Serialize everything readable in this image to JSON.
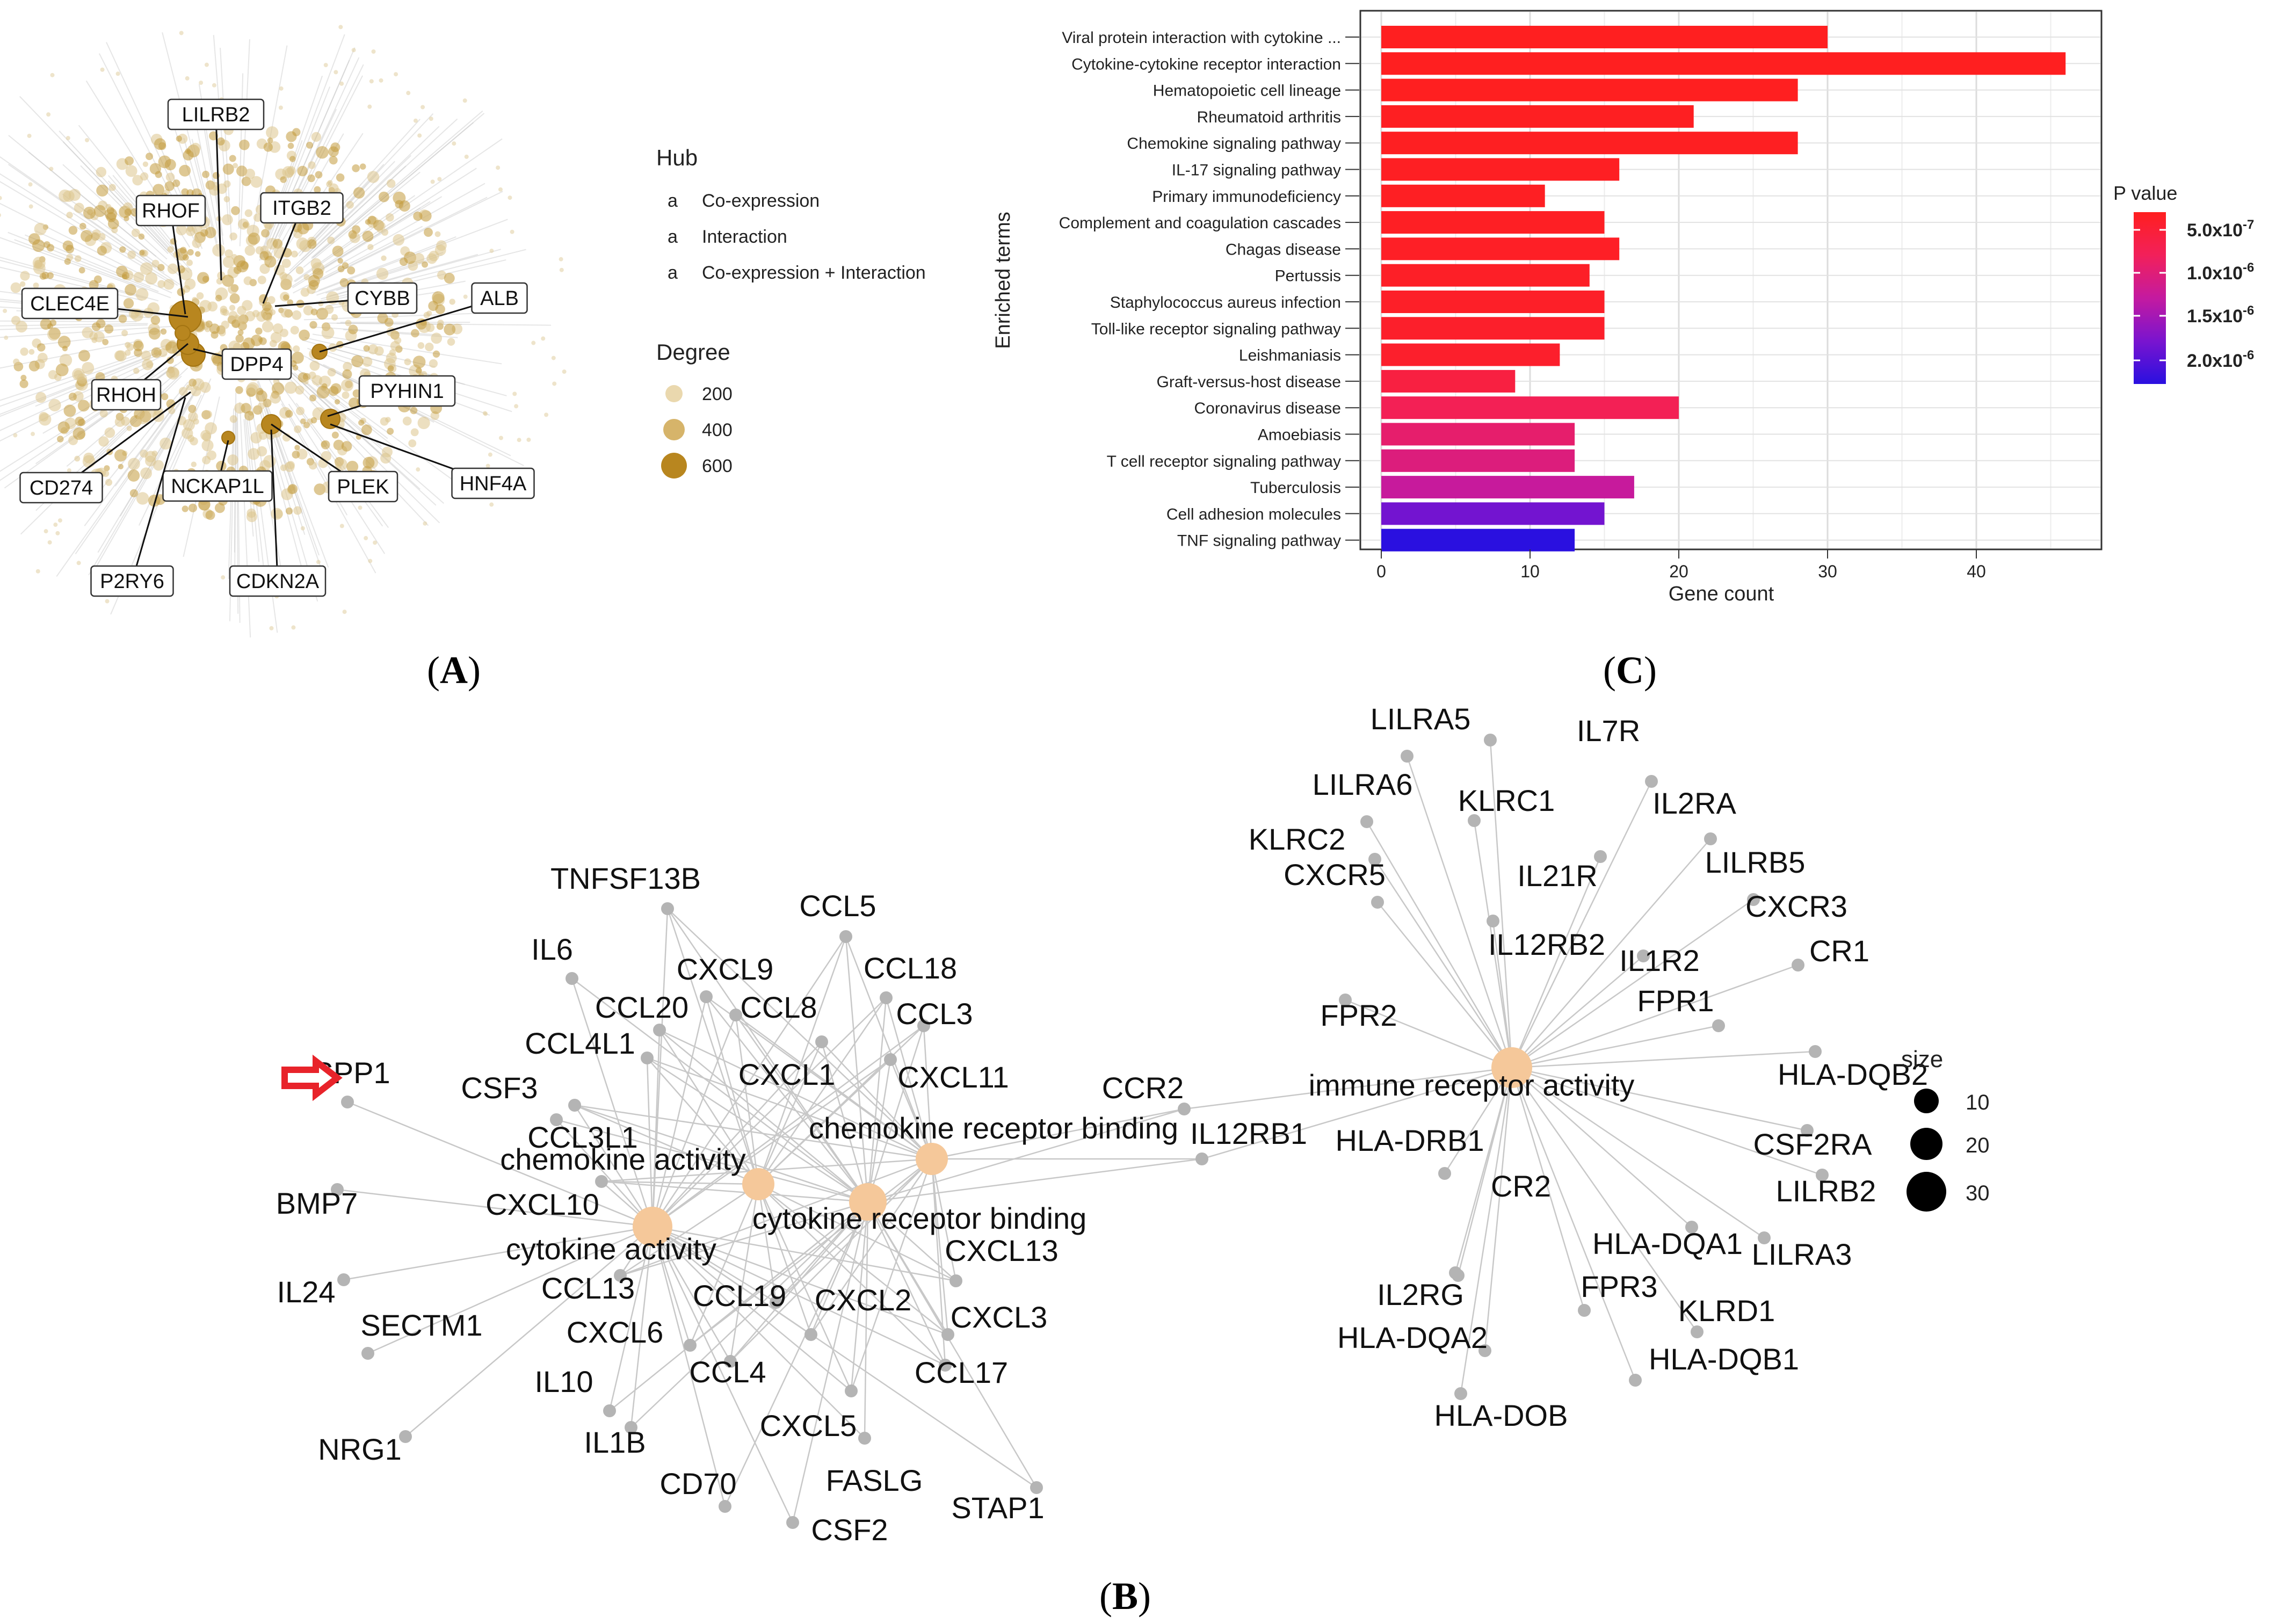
{
  "panels": {
    "a": "A",
    "b": "B",
    "c": "C"
  },
  "colors": {
    "hub_dark": "#b8861f",
    "hub_light": "#dcc48c",
    "cnet_center": "#f5c89a",
    "cnet_gene": "#b4b4b4",
    "arrow": "#e8232a",
    "grid": "#e5e5e5"
  },
  "network_a": {
    "hub_legend_title": "Hub",
    "hub_legend_glyph": "a",
    "hub_legend": [
      "Co-expression",
      "Interaction",
      "Co-expression + Interaction"
    ],
    "degree_title": "Degree",
    "degree_legend": [
      "200",
      "400",
      "600"
    ],
    "hubs": [
      "LILRB2",
      "RHOF",
      "ITGB2",
      "CYBB",
      "ALB",
      "CLEC4E",
      "DPP4",
      "RHOH",
      "PYHIN1",
      "CD274",
      "NCKAP1L",
      "PLEK",
      "HNF4A",
      "P2RY6",
      "CDKN2A"
    ]
  },
  "chart_data": {
    "type": "bar",
    "orientation": "horizontal",
    "ylabel": "Enriched terms",
    "xlabel": "Gene count",
    "xlim": [
      0,
      48
    ],
    "xticks": [
      "0",
      "10",
      "20",
      "30",
      "40"
    ],
    "grid": true,
    "legend_title": "P value",
    "legend_labels": [
      "5.0x10-7",
      "1.0x10-6",
      "1.5x10-6",
      "2.0x10-6"
    ],
    "legend_scale_range": [
      3.5e-07,
      2.1e-06
    ],
    "color_low": "#ff1f1f",
    "color_high": "#2a10e0",
    "categories": [
      "Viral protein interaction with cytokine ...",
      "Cytokine-cytokine receptor interaction",
      "Hematopoietic cell lineage",
      "Rheumatoid arthritis",
      "Chemokine signaling pathway",
      "IL-17 signaling pathway",
      "Primary immunodeficiency",
      "Complement and coagulation cascades",
      "Chagas disease",
      "Pertussis",
      "Staphylococcus aureus infection",
      "Toll-like receptor signaling pathway",
      "Leishmaniasis",
      "Graft-versus-host disease",
      "Coronavirus disease",
      "Amoebiasis",
      "T cell receptor signaling pathway",
      "Tuberculosis",
      "Cell adhesion molecules",
      "TNF signaling pathway"
    ],
    "values": [
      30,
      46,
      28,
      21,
      28,
      16,
      11,
      15,
      16,
      14,
      15,
      15,
      12,
      9,
      20,
      13,
      13,
      17,
      15,
      13
    ],
    "pvalues": [
      3.6e-07,
      3.6e-07,
      3.6e-07,
      3.7e-07,
      3.7e-07,
      3.8e-07,
      3.8e-07,
      3.9e-07,
      4e-07,
      4.1e-07,
      4.2e-07,
      4.4e-07,
      4.5e-07,
      6e-07,
      7.5e-07,
      9e-07,
      1e-06,
      1.2e-06,
      1.7e-06,
      2.1e-06
    ]
  },
  "cnet": {
    "size_title": "size",
    "size_legend": [
      "10",
      "20",
      "30"
    ],
    "categories": [
      "chemokine activity",
      "cytokine activity",
      "cytokine receptor binding",
      "chemokine receptor binding",
      "immune receptor activity"
    ],
    "genes_left": [
      "SPP1",
      "TNFSF13B",
      "CCL5",
      "IL6",
      "CXCL9",
      "CCL18",
      "CCL20",
      "CCL8",
      "CCL3",
      "CCL4L1",
      "CSF3",
      "CXCL1",
      "CXCL11",
      "CCL3L1",
      "BMP7",
      "CXCL10",
      "IL24",
      "CCL13",
      "CXCL13",
      "SECTM1",
      "CCL19",
      "CXCL2",
      "CXCL3",
      "CXCL6",
      "IL10",
      "CCL4",
      "CCL17",
      "NRG1",
      "IL1B",
      "CXCL5",
      "CD70",
      "FASLG",
      "STAP1",
      "CSF2"
    ],
    "genes_bridge": [
      "CCR2",
      "IL12RB1"
    ],
    "genes_right": [
      "LILRA5",
      "IL7R",
      "LILRA6",
      "KLRC1",
      "IL2RA",
      "KLRC2",
      "LILRB5",
      "CXCR5",
      "IL21R",
      "CXCR3",
      "IL12RB2",
      "IL1R2",
      "CR1",
      "FPR2",
      "FPR1",
      "HLA-DQB2",
      "HLA-DRB1",
      "CSF2RA",
      "CR2",
      "LILRB2",
      "HLA-DQA1",
      "LILRA3",
      "IL2RG",
      "FPR3",
      "KLRD1",
      "HLA-DQA2",
      "HLA-DQB1",
      "HLA-DOB"
    ]
  }
}
